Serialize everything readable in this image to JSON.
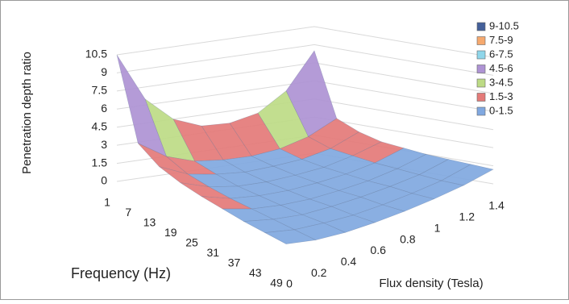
{
  "chart_data": {
    "type": "surface3d",
    "z_label": "Penetration depth ratio",
    "x_label": "Frequency (Hz)",
    "y_label": "Flux density (Tesla)",
    "frequencies": [
      1,
      7,
      13,
      19,
      25,
      31,
      37,
      43,
      49
    ],
    "flux_densities": [
      0,
      0.2,
      0.4,
      0.6,
      0.8,
      1,
      1.2,
      1.4
    ],
    "values": [
      [
        10.5,
        6.5,
        4.5,
        3.6,
        3.5,
        4.0,
        5.5,
        8.5
      ],
      [
        4.0,
        2.5,
        1.7,
        1.4,
        1.3,
        1.5,
        2.1,
        3.2
      ],
      [
        2.9,
        1.8,
        1.3,
        1.0,
        1.0,
        1.1,
        1.5,
        2.4
      ],
      [
        2.4,
        1.5,
        1.0,
        0.8,
        0.8,
        0.9,
        1.3,
        1.9
      ],
      [
        2.1,
        1.3,
        0.9,
        0.7,
        0.7,
        0.8,
        1.1,
        1.7
      ],
      [
        1.9,
        1.2,
        0.8,
        0.6,
        0.6,
        0.7,
        1.0,
        1.5
      ],
      [
        1.7,
        1.1,
        0.7,
        0.6,
        0.6,
        0.7,
        0.9,
        1.4
      ],
      [
        1.6,
        1.0,
        0.7,
        0.5,
        0.5,
        0.6,
        0.8,
        1.3
      ],
      [
        1.5,
        0.9,
        0.6,
        0.5,
        0.5,
        0.6,
        0.8,
        1.2
      ]
    ],
    "zlim": [
      0,
      10.5
    ],
    "zticks": [
      0,
      1.5,
      3,
      4.5,
      6,
      7.5,
      9,
      10.5
    ],
    "grid": true,
    "legend_position": "right",
    "bands": [
      {
        "name": "9-10.5",
        "min": 9,
        "max": 10.5,
        "color": "#44609a"
      },
      {
        "name": "7.5-9",
        "min": 7.5,
        "max": 9,
        "color": "#f6a96e"
      },
      {
        "name": "6-7.5",
        "min": 6,
        "max": 7.5,
        "color": "#8fd6ea"
      },
      {
        "name": "4.5-6",
        "min": 4.5,
        "max": 6,
        "color": "#ae93d4"
      },
      {
        "name": "3-4.5",
        "min": 3,
        "max": 4.5,
        "color": "#bddb85"
      },
      {
        "name": "1.5-3",
        "min": 1.5,
        "max": 3,
        "color": "#e47a78"
      },
      {
        "name": "0-1.5",
        "min": 0,
        "max": 1.5,
        "color": "#80a8e0"
      }
    ]
  }
}
